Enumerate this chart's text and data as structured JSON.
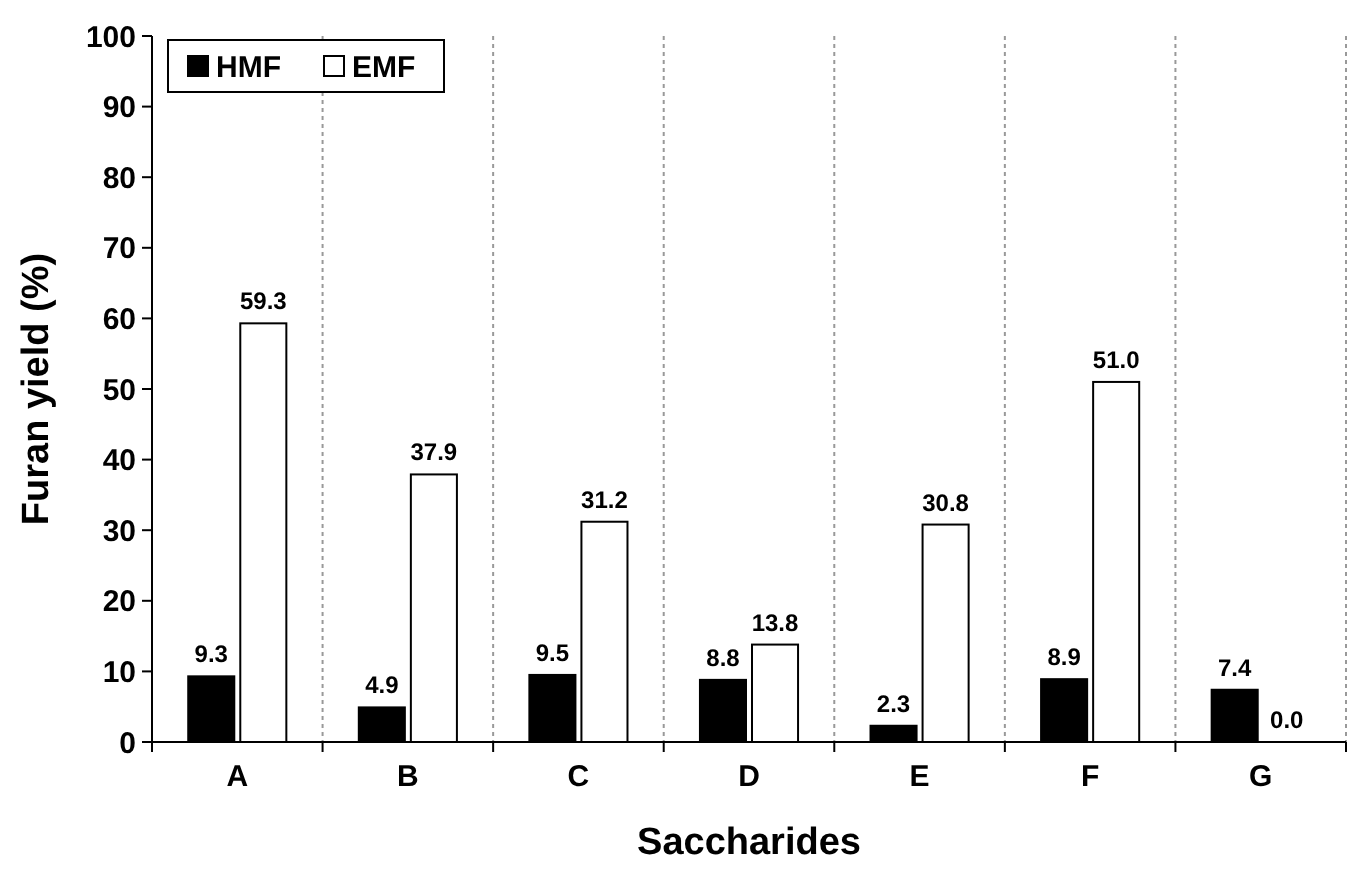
{
  "chart_data": {
    "type": "bar",
    "xlabel": "Saccharides",
    "ylabel": "Furan yield (%)",
    "categories": [
      "A",
      "B",
      "C",
      "D",
      "E",
      "F",
      "G"
    ],
    "series": [
      {
        "name": "HMF",
        "color": "#000000",
        "values": [
          9.3,
          4.9,
          9.5,
          8.8,
          2.3,
          8.9,
          7.4
        ]
      },
      {
        "name": "EMF",
        "color": "#ffffff",
        "values": [
          59.3,
          37.9,
          31.2,
          13.8,
          30.8,
          51.0,
          0.0
        ]
      }
    ],
    "value_labels": [
      [
        "9.3",
        "4.9",
        "9.5",
        "8.8",
        "2.3",
        "8.9",
        "7.4"
      ],
      [
        "59.3",
        "37.9",
        "31.2",
        "13.8",
        "30.8",
        "51.0",
        "0.0"
      ]
    ],
    "ylim": [
      0,
      100
    ],
    "yticks": [
      0,
      10,
      20,
      30,
      40,
      50,
      60,
      70,
      80,
      90,
      100
    ],
    "grid": "x",
    "legend": "top left"
  }
}
